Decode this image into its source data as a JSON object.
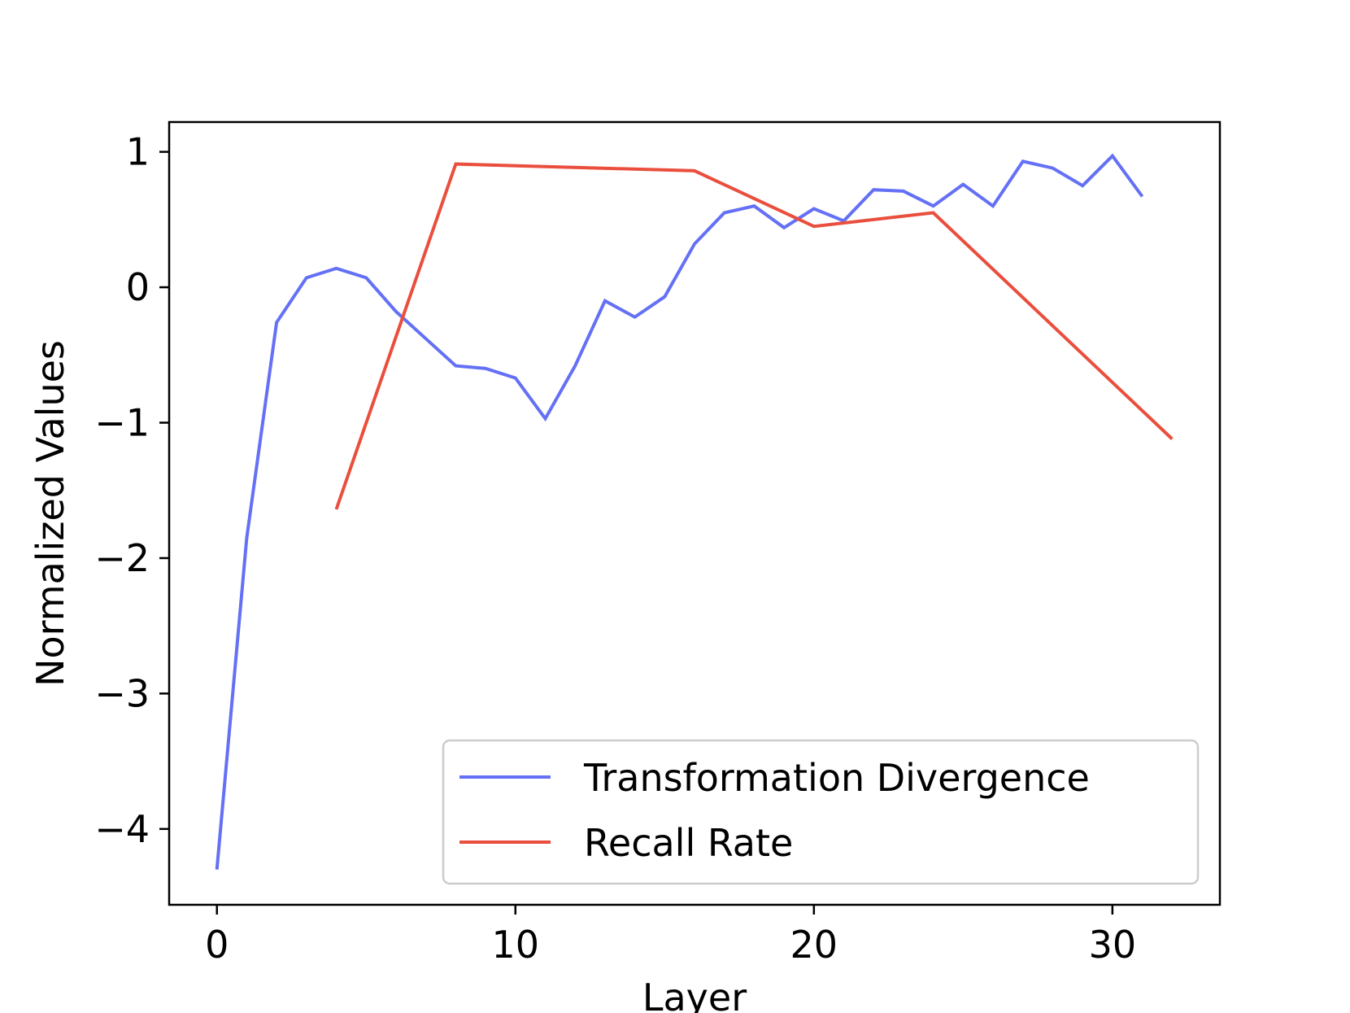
{
  "chart_data": {
    "type": "line",
    "title": "",
    "xlabel": "Layer",
    "ylabel": "Normalized Values",
    "xlim": [
      -1.6,
      33.6
    ],
    "ylim": [
      -4.56,
      1.22
    ],
    "xticks": [
      0,
      10,
      20,
      30
    ],
    "yticks": [
      1,
      0,
      -1,
      -2,
      -3,
      -4
    ],
    "xtick_labels": [
      "0",
      "10",
      "20",
      "30"
    ],
    "ytick_labels": [
      "1",
      "0",
      "−1",
      "−2",
      "−3",
      "−4"
    ],
    "grid": false,
    "legend_position": "lower-right",
    "series": [
      {
        "name": "Transformation Divergence",
        "color": "#6470f5",
        "x": [
          0,
          1,
          2,
          3,
          4,
          5,
          6,
          7,
          8,
          9,
          10,
          11,
          12,
          13,
          14,
          15,
          16,
          17,
          18,
          19,
          20,
          21,
          22,
          23,
          24,
          25,
          26,
          27,
          28,
          29,
          30,
          31
        ],
        "values": [
          -4.3,
          -1.85,
          -0.26,
          0.07,
          0.14,
          0.07,
          -0.18,
          -0.38,
          -0.58,
          -0.6,
          -0.67,
          -0.97,
          -0.58,
          -0.1,
          -0.22,
          -0.07,
          0.32,
          0.55,
          0.6,
          0.44,
          0.58,
          0.49,
          0.72,
          0.71,
          0.6,
          0.76,
          0.6,
          0.93,
          0.88,
          0.75,
          0.97,
          0.67
        ]
      },
      {
        "name": "Recall Rate",
        "color": "#ea4e3d",
        "x": [
          4,
          8,
          16,
          20,
          24,
          32
        ],
        "values": [
          -1.64,
          0.91,
          0.86,
          0.45,
          0.55,
          -1.12
        ]
      }
    ]
  }
}
